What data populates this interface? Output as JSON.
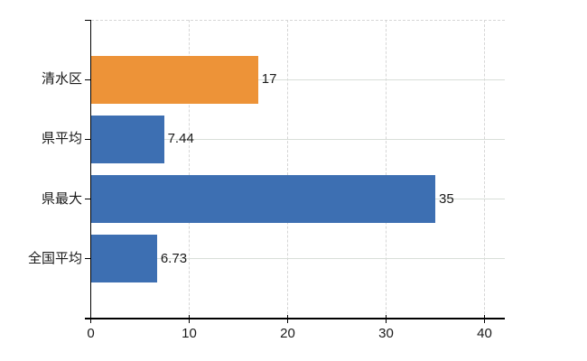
{
  "chart_data": {
    "type": "bar",
    "orientation": "horizontal",
    "title": "",
    "xlabel": "",
    "ylabel": "",
    "categories": [
      "清水区",
      "県平均",
      "県最大",
      "全国平均"
    ],
    "values": [
      17,
      7.44,
      35,
      6.73
    ],
    "value_labels": [
      "17",
      "7.44",
      "35",
      "6.73"
    ],
    "bar_colors": [
      "#ed9338",
      "#3d6fb2",
      "#3d6fb2",
      "#3d6fb2"
    ],
    "x_ticks": [
      0,
      10,
      20,
      30,
      40
    ],
    "x_tick_labels": [
      "0",
      "10",
      "20",
      "30",
      "40"
    ],
    "xlim": [
      0,
      42
    ],
    "grid": true,
    "legend": false
  },
  "colors": {
    "accent_orange": "#ed9338",
    "accent_blue": "#3d6fb2",
    "axis": "#000000",
    "grid_vertical": "#d6d6d6",
    "grid_horizontal": "#d8ded8",
    "text": "#1a1a1a",
    "background": "#ffffff"
  }
}
